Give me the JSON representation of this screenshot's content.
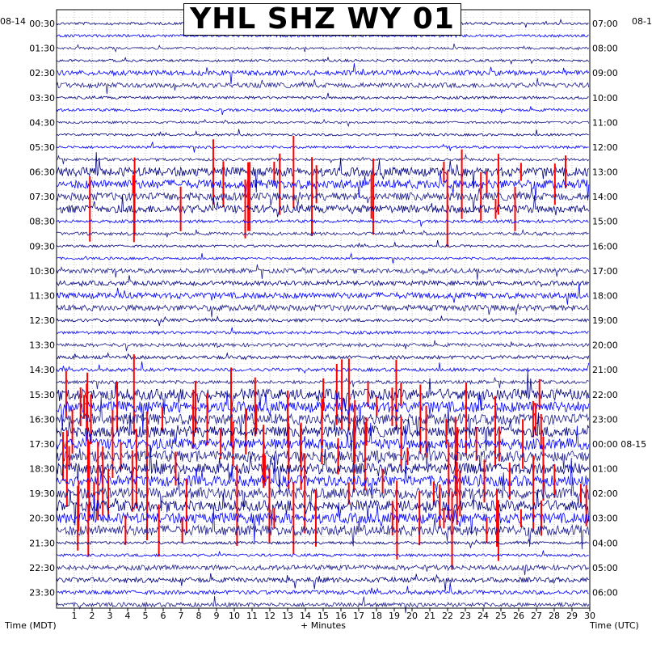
{
  "chart_data": {
    "type": "helicorder",
    "title": "YHL SHZ WY 01",
    "date_left": "08-14",
    "date_right": "08-1",
    "left_tick_labels": [
      "00:30",
      "01:30",
      "02:30",
      "03:30",
      "04:30",
      "05:30",
      "06:30",
      "07:30",
      "08:30",
      "09:30",
      "10:30",
      "11:30",
      "12:30",
      "13:30",
      "14:30",
      "15:30",
      "16:30",
      "17:30",
      "18:30",
      "19:30",
      "20:30",
      "21:30",
      "22:30",
      "23:30"
    ],
    "right_tick_labels": [
      "07:00",
      "08:00",
      "09:00",
      "10:00",
      "11:00",
      "12:00",
      "13:00",
      "14:00",
      "15:00",
      "16:00",
      "17:00",
      "18:00",
      "19:00",
      "20:00",
      "21:00",
      "22:00",
      "23:00",
      "00:00 08-15",
      "01:00",
      "02:00",
      "03:00",
      "04:00",
      "05:00",
      "06:00"
    ],
    "x_tick_labels": [
      "1",
      "2",
      "3",
      "4",
      "5",
      "6",
      "7",
      "8",
      "9",
      "10",
      "11",
      "12",
      "13",
      "14",
      "15",
      "16",
      "17",
      "18",
      "19",
      "20",
      "21",
      "22",
      "23",
      "24",
      "25",
      "26",
      "27",
      "28",
      "29",
      "30"
    ],
    "xlim": [
      0,
      30
    ],
    "xlabel": "+ Minutes",
    "ylabel_left": "Time (MDT)",
    "ylabel_right": "Time (UTC)",
    "trace_colors": [
      "#00007f",
      "#0000ff",
      "#1e1e8c"
    ],
    "clip_color": "#ff0000",
    "grid": true,
    "rows_per_hour": 2,
    "total_rows": 48,
    "activity_by_hour": [
      0.1,
      0.08,
      0.35,
      0.12,
      0.07,
      0.1,
      0.75,
      0.65,
      0.15,
      0.08,
      0.3,
      0.45,
      0.15,
      0.2,
      0.18,
      0.95,
      0.95,
      0.95,
      0.95,
      0.95,
      0.9,
      0.12,
      0.35,
      0.25
    ]
  }
}
